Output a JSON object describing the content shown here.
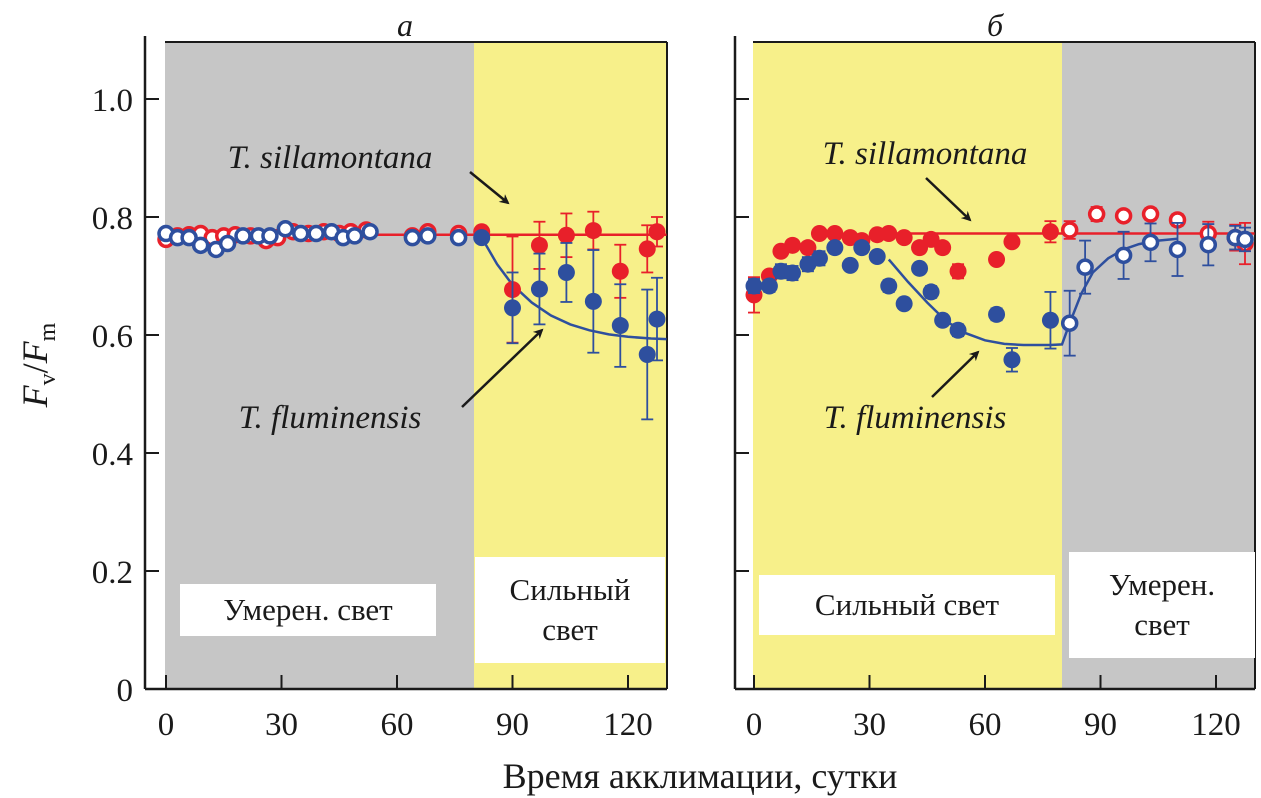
{
  "colors": {
    "moderate_light": "#c6c6c6",
    "strong_light": "#f7f08a",
    "red_series": "#e8202a",
    "blue_series": "#2e4f9e",
    "axis": "#1a1a1a"
  },
  "chart_data": [
    {
      "type": "scatter",
      "panel": "a",
      "title": "а",
      "xlabel": "Время акклимации, сутки",
      "ylabel": "Fv/Fm",
      "xlim": [
        -3,
        130
      ],
      "ylim": [
        0,
        1.1
      ],
      "xticks": [
        "0",
        "30",
        "60",
        "90",
        "120"
      ],
      "xtick_values": [
        0,
        30,
        60,
        90,
        120
      ],
      "yticks": [
        "0",
        "0.2",
        "0.4",
        "0.6",
        "0.8",
        "1.0"
      ],
      "ytick_values": [
        0,
        0.2,
        0.4,
        0.6,
        0.8,
        1.0
      ],
      "grid": false,
      "regions": [
        {
          "from": -3,
          "to": 80,
          "kind": "moderate_light",
          "label_lines": [
            "Умерен. свет"
          ]
        },
        {
          "from": 80,
          "to": 130,
          "kind": "strong_light",
          "label_lines": [
            "Сильный",
            "свет"
          ]
        }
      ],
      "annotations": [
        {
          "text": "T. sillamontana",
          "series": "T. sillamontana"
        },
        {
          "text": "T. fluminensis",
          "series": "T. fluminensis"
        }
      ],
      "series": [
        {
          "name": "T. sillamontana",
          "color_key": "red_series",
          "points": [
            {
              "x": 0,
              "y": 0.762,
              "open": true
            },
            {
              "x": 3,
              "y": 0.768,
              "open": true
            },
            {
              "x": 6,
              "y": 0.77,
              "open": true
            },
            {
              "x": 9,
              "y": 0.772,
              "open": true
            },
            {
              "x": 12,
              "y": 0.765,
              "open": true
            },
            {
              "x": 15,
              "y": 0.768,
              "open": true
            },
            {
              "x": 18,
              "y": 0.77,
              "open": true
            },
            {
              "x": 22,
              "y": 0.768,
              "open": true
            },
            {
              "x": 26,
              "y": 0.76,
              "open": true
            },
            {
              "x": 29,
              "y": 0.765,
              "open": true
            },
            {
              "x": 33,
              "y": 0.775,
              "open": true
            },
            {
              "x": 37,
              "y": 0.772,
              "open": true
            },
            {
              "x": 41,
              "y": 0.775,
              "open": true
            },
            {
              "x": 45,
              "y": 0.772,
              "open": true
            },
            {
              "x": 48,
              "y": 0.775,
              "open": true
            },
            {
              "x": 52,
              "y": 0.778,
              "open": true
            },
            {
              "x": 64,
              "y": 0.768,
              "open": true
            },
            {
              "x": 68,
              "y": 0.775,
              "open": true
            },
            {
              "x": 76,
              "y": 0.772,
              "open": true
            },
            {
              "x": 82,
              "y": 0.775,
              "open": false
            },
            {
              "x": 90,
              "y": 0.677,
              "err": 0.09,
              "open": false
            },
            {
              "x": 97,
              "y": 0.752,
              "err": 0.04,
              "open": false
            },
            {
              "x": 104,
              "y": 0.769,
              "err": 0.037,
              "open": false
            },
            {
              "x": 111,
              "y": 0.777,
              "err": 0.032,
              "open": false
            },
            {
              "x": 118,
              "y": 0.708,
              "err": 0.045,
              "open": false
            },
            {
              "x": 125,
              "y": 0.746,
              "err": 0.04,
              "open": false
            },
            {
              "x": 132,
              "y": 0.775,
              "err": 0.025,
              "open": false
            }
          ],
          "fit": [
            [
              0,
              0.77
            ],
            [
              130,
              0.77
            ]
          ]
        },
        {
          "name": "T. fluminensis",
          "color_key": "blue_series",
          "points": [
            {
              "x": 0,
              "y": 0.772,
              "open": true
            },
            {
              "x": 3,
              "y": 0.765,
              "open": true
            },
            {
              "x": 6,
              "y": 0.765,
              "open": true
            },
            {
              "x": 9,
              "y": 0.752,
              "open": true
            },
            {
              "x": 13,
              "y": 0.745,
              "open": true
            },
            {
              "x": 16,
              "y": 0.755,
              "open": true
            },
            {
              "x": 20,
              "y": 0.768,
              "open": true
            },
            {
              "x": 24,
              "y": 0.768,
              "open": true
            },
            {
              "x": 27,
              "y": 0.768,
              "open": true
            },
            {
              "x": 31,
              "y": 0.78,
              "open": true
            },
            {
              "x": 35,
              "y": 0.772,
              "open": true
            },
            {
              "x": 39,
              "y": 0.772,
              "open": true
            },
            {
              "x": 43,
              "y": 0.775,
              "open": true
            },
            {
              "x": 46,
              "y": 0.765,
              "open": true
            },
            {
              "x": 49,
              "y": 0.768,
              "open": true
            },
            {
              "x": 53,
              "y": 0.775,
              "open": true
            },
            {
              "x": 64,
              "y": 0.765,
              "open": true
            },
            {
              "x": 68,
              "y": 0.768,
              "open": true
            },
            {
              "x": 76,
              "y": 0.765,
              "open": true
            },
            {
              "x": 82,
              "y": 0.765,
              "open": false
            },
            {
              "x": 90,
              "y": 0.646,
              "err": 0.06,
              "open": false
            },
            {
              "x": 97,
              "y": 0.678,
              "err": 0.06,
              "open": false
            },
            {
              "x": 104,
              "y": 0.706,
              "err": 0.05,
              "open": false
            },
            {
              "x": 111,
              "y": 0.657,
              "err": 0.087,
              "open": false
            },
            {
              "x": 118,
              "y": 0.616,
              "err": 0.07,
              "open": false
            },
            {
              "x": 125,
              "y": 0.567,
              "err": 0.11,
              "open": false
            },
            {
              "x": 132,
              "y": 0.627,
              "err": 0.07,
              "open": false
            }
          ],
          "fit": [
            [
              82,
              0.765
            ],
            [
              86,
              0.72
            ],
            [
              90,
              0.685
            ],
            [
              95,
              0.655
            ],
            [
              100,
              0.633
            ],
            [
              105,
              0.618
            ],
            [
              110,
              0.608
            ],
            [
              115,
              0.601
            ],
            [
              120,
              0.597
            ],
            [
              126,
              0.594
            ],
            [
              130,
              0.593
            ]
          ]
        }
      ]
    },
    {
      "type": "scatter",
      "panel": "b",
      "title": "б",
      "xlabel": "Время акклимации, сутки",
      "ylabel": "Fv/Fm",
      "xlim": [
        -3,
        130
      ],
      "ylim": [
        0,
        1.1
      ],
      "xticks": [
        "0",
        "30",
        "60",
        "90",
        "120"
      ],
      "xtick_values": [
        0,
        30,
        60,
        90,
        120
      ],
      "yticks": [
        "0",
        "0.2",
        "0.4",
        "0.6",
        "0.8",
        "1.0"
      ],
      "ytick_values": [
        0,
        0.2,
        0.4,
        0.6,
        0.8,
        1.0
      ],
      "grid": false,
      "regions": [
        {
          "from": -3,
          "to": 80,
          "kind": "strong_light",
          "label_lines": [
            "Сильный свет"
          ]
        },
        {
          "from": 80,
          "to": 130,
          "kind": "moderate_light",
          "label_lines": [
            "Умерен.",
            "свет"
          ]
        }
      ],
      "annotations": [
        {
          "text": "T. sillamontana",
          "series": "T. sillamontana"
        },
        {
          "text": "T. fluminensis",
          "series": "T. fluminensis"
        }
      ],
      "series": [
        {
          "name": "T. sillamontana",
          "color_key": "red_series",
          "points": [
            {
              "x": 0,
              "y": 0.668,
              "err": 0.03,
              "open": false
            },
            {
              "x": 4,
              "y": 0.7,
              "open": false
            },
            {
              "x": 7,
              "y": 0.742,
              "open": false
            },
            {
              "x": 10,
              "y": 0.752,
              "open": false
            },
            {
              "x": 14,
              "y": 0.748,
              "open": false
            },
            {
              "x": 17,
              "y": 0.772,
              "open": false
            },
            {
              "x": 21,
              "y": 0.772,
              "open": false
            },
            {
              "x": 25,
              "y": 0.765,
              "open": false
            },
            {
              "x": 28,
              "y": 0.76,
              "open": false
            },
            {
              "x": 32,
              "y": 0.77,
              "open": false
            },
            {
              "x": 35,
              "y": 0.772,
              "open": false
            },
            {
              "x": 39,
              "y": 0.765,
              "open": false
            },
            {
              "x": 43,
              "y": 0.748,
              "open": false
            },
            {
              "x": 46,
              "y": 0.762,
              "open": false
            },
            {
              "x": 49,
              "y": 0.748,
              "open": false
            },
            {
              "x": 53,
              "y": 0.708,
              "err": 0.012,
              "open": false
            },
            {
              "x": 63,
              "y": 0.728,
              "open": false
            },
            {
              "x": 67,
              "y": 0.758,
              "open": false
            },
            {
              "x": 77,
              "y": 0.775,
              "err": 0.018,
              "open": false
            },
            {
              "x": 82,
              "y": 0.778,
              "err": 0.015,
              "open": true
            },
            {
              "x": 89,
              "y": 0.805,
              "err": 0.012,
              "open": true
            },
            {
              "x": 96,
              "y": 0.802,
              "open": true
            },
            {
              "x": 103,
              "y": 0.805,
              "err": 0.01,
              "open": true
            },
            {
              "x": 110,
              "y": 0.795,
              "err": 0.01,
              "open": true
            },
            {
              "x": 118,
              "y": 0.772,
              "err": 0.02,
              "open": true
            },
            {
              "x": 125,
              "y": 0.765,
              "err": 0.022,
              "open": true
            },
            {
              "x": 132,
              "y": 0.755,
              "err": 0.035,
              "open": true
            }
          ],
          "fit": [
            [
              35,
              0.772
            ],
            [
              130,
              0.772
            ]
          ]
        },
        {
          "name": "T. fluminensis",
          "color_key": "blue_series",
          "points": [
            {
              "x": 0,
              "y": 0.683,
              "err": 0.012,
              "open": false
            },
            {
              "x": 4,
              "y": 0.683,
              "err": 0.01,
              "open": false
            },
            {
              "x": 7,
              "y": 0.708,
              "err": 0.012,
              "open": false
            },
            {
              "x": 10,
              "y": 0.705,
              "err": 0.012,
              "open": false
            },
            {
              "x": 14,
              "y": 0.72,
              "err": 0.012,
              "open": false
            },
            {
              "x": 17,
              "y": 0.73,
              "err": 0.012,
              "open": false
            },
            {
              "x": 21,
              "y": 0.748,
              "open": false
            },
            {
              "x": 25,
              "y": 0.718,
              "open": false
            },
            {
              "x": 28,
              "y": 0.748,
              "open": false
            },
            {
              "x": 32,
              "y": 0.733,
              "open": false
            },
            {
              "x": 35,
              "y": 0.683,
              "err": 0.01,
              "open": false
            },
            {
              "x": 39,
              "y": 0.653,
              "open": false
            },
            {
              "x": 43,
              "y": 0.713,
              "open": false
            },
            {
              "x": 46,
              "y": 0.673,
              "err": 0.01,
              "open": false
            },
            {
              "x": 49,
              "y": 0.625,
              "open": false
            },
            {
              "x": 53,
              "y": 0.608,
              "err": 0.01,
              "open": false
            },
            {
              "x": 63,
              "y": 0.635,
              "err": 0.01,
              "open": false
            },
            {
              "x": 67,
              "y": 0.558,
              "err": 0.02,
              "open": false
            },
            {
              "x": 77,
              "y": 0.625,
              "err": 0.048,
              "open": false
            },
            {
              "x": 82,
              "y": 0.62,
              "err": 0.055,
              "open": true
            },
            {
              "x": 86,
              "y": 0.715,
              "err": 0.045,
              "open": true
            },
            {
              "x": 96,
              "y": 0.735,
              "err": 0.04,
              "open": true
            },
            {
              "x": 103,
              "y": 0.757,
              "err": 0.032,
              "open": true
            },
            {
              "x": 110,
              "y": 0.745,
              "err": 0.045,
              "open": true
            },
            {
              "x": 118,
              "y": 0.753,
              "err": 0.035,
              "open": true
            },
            {
              "x": 125,
              "y": 0.765,
              "err": 0.02,
              "open": true
            },
            {
              "x": 132,
              "y": 0.762,
              "err": 0.02,
              "open": true
            }
          ],
          "fit": [
            [
              35,
              0.728
            ],
            [
              40,
              0.69
            ],
            [
              45,
              0.655
            ],
            [
              50,
              0.623
            ],
            [
              55,
              0.603
            ],
            [
              60,
              0.591
            ],
            [
              65,
              0.585
            ],
            [
              70,
              0.583
            ],
            [
              77,
              0.583
            ],
            [
              80,
              0.584
            ],
            [
              82,
              0.62
            ],
            [
              85,
              0.67
            ],
            [
              88,
              0.706
            ],
            [
              92,
              0.73
            ],
            [
              96,
              0.745
            ],
            [
              100,
              0.754
            ],
            [
              105,
              0.76
            ],
            [
              110,
              0.763
            ]
          ]
        }
      ]
    }
  ],
  "axes": {
    "ylabel_main": "F",
    "ylabel_sub1": "v",
    "ylabel_sep": "/",
    "ylabel_main2": "F",
    "ylabel_sub2": "m",
    "xlabel": "Время акклимации, сутки"
  }
}
